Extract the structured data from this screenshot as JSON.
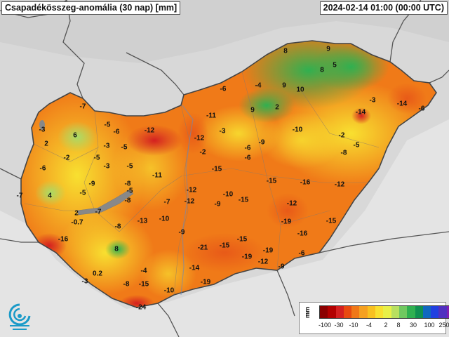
{
  "title": "Csapadékösszeg-anomália (30 nap) [mm]",
  "timestamp": "2024-02-14 01:00 (00:00 UTC)",
  "legend": {
    "unit": "mm",
    "colors": [
      "#8b0000",
      "#b30000",
      "#d42020",
      "#e84a10",
      "#f07818",
      "#f5a020",
      "#f8c020",
      "#f8e030",
      "#e8f048",
      "#b8e060",
      "#70c860",
      "#30b050",
      "#109050",
      "#1068c0",
      "#2040e0",
      "#5030c0",
      "#8020b0",
      "#a030c0"
    ],
    "tick_labels": [
      "-100",
      "-30",
      "-10",
      "-4",
      "2",
      "8",
      "30",
      "100",
      "250"
    ]
  },
  "values": [
    {
      "label": "-7"
    },
    {
      "label": "-3"
    },
    {
      "label": "6"
    },
    {
      "label": "-5"
    },
    {
      "label": "-6"
    },
    {
      "label": "-12"
    },
    {
      "label": "2"
    },
    {
      "label": "-2"
    },
    {
      "label": "-5"
    },
    {
      "label": "-3"
    },
    {
      "label": "-5"
    },
    {
      "label": "-11"
    },
    {
      "label": "-12"
    },
    {
      "label": "-3"
    },
    {
      "label": "-2"
    },
    {
      "label": "-6"
    },
    {
      "label": "-4"
    },
    {
      "label": "8"
    },
    {
      "label": "9"
    },
    {
      "label": "8"
    },
    {
      "label": "5"
    },
    {
      "label": "9"
    },
    {
      "label": "10"
    },
    {
      "label": "9"
    },
    {
      "label": "2"
    },
    {
      "label": "-3"
    },
    {
      "label": "-14"
    },
    {
      "label": "-14"
    },
    {
      "label": "-6"
    },
    {
      "label": "-10"
    },
    {
      "label": "-2"
    },
    {
      "label": "-5"
    },
    {
      "label": "-8"
    },
    {
      "label": "-6"
    },
    {
      "label": "-9"
    },
    {
      "label": "-6"
    },
    {
      "label": "-6"
    },
    {
      "label": "-3"
    },
    {
      "label": "-5"
    },
    {
      "label": "-15"
    },
    {
      "label": "-11"
    },
    {
      "label": "-9"
    },
    {
      "label": "-5"
    },
    {
      "label": "-8"
    },
    {
      "label": "-7"
    },
    {
      "label": "4"
    },
    {
      "label": "-5"
    },
    {
      "label": "-8"
    },
    {
      "label": "-7"
    },
    {
      "label": "-12"
    },
    {
      "label": "-12"
    },
    {
      "label": "-10"
    },
    {
      "label": "-15"
    },
    {
      "label": "-9"
    },
    {
      "label": "-15"
    },
    {
      "label": "-16"
    },
    {
      "label": "-12"
    },
    {
      "label": "-7"
    },
    {
      "label": "2"
    },
    {
      "label": "-0.7"
    },
    {
      "label": "-8"
    },
    {
      "label": "-13"
    },
    {
      "label": "-10"
    },
    {
      "label": "-9"
    },
    {
      "label": "-19"
    },
    {
      "label": "-16"
    },
    {
      "label": "-15"
    },
    {
      "label": "-12"
    },
    {
      "label": "-16"
    },
    {
      "label": "8"
    },
    {
      "label": "-21"
    },
    {
      "label": "-15"
    },
    {
      "label": "-15"
    },
    {
      "label": "-19"
    },
    {
      "label": "-19"
    },
    {
      "label": "-12"
    },
    {
      "label": "-6"
    },
    {
      "label": "-14"
    },
    {
      "label": "-9"
    },
    {
      "label": "0.2"
    },
    {
      "label": "-4"
    },
    {
      "label": "-3"
    },
    {
      "label": "-8"
    },
    {
      "label": "-15"
    },
    {
      "label": "-10"
    },
    {
      "label": "-19"
    },
    {
      "label": "-24"
    }
  ]
}
